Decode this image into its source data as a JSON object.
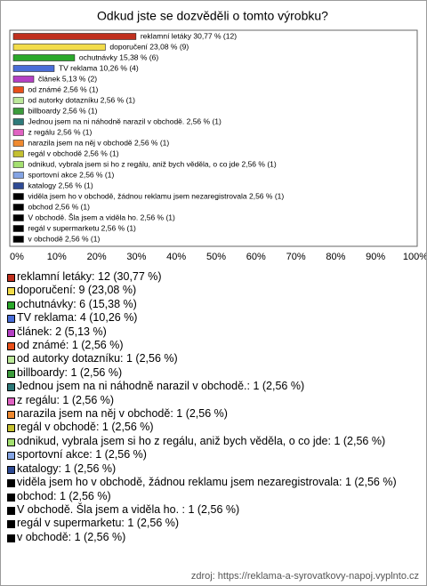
{
  "chart_data": {
    "type": "barh",
    "title": "Odkud jste se dozvěděli o tomto výrobku?",
    "categories": [
      "reklamní letáky",
      "doporučení",
      "ochutnávky",
      "TV reklama",
      "článek",
      "od známé",
      "od autorky dotazníku",
      "billboardy",
      "Jednou jsem na ni náhodně narazil v obchodě.",
      "z regálu",
      "narazila jsem na něj v obchodě",
      "regál v obchodě",
      "odnikud, vybrala jsem si ho z regálu, aniž bych věděla, o co jde",
      "sportovní akce",
      "katalogy",
      "viděla jsem ho v obchodě, žádnou reklamu jsem nezaregistrovala",
      "obchod",
      "V obchodě. Šla jsem a viděla ho.",
      "regál v supermarketu",
      "v obchodě"
    ],
    "values": [
      30.77,
      23.08,
      15.38,
      10.26,
      5.13,
      2.56,
      2.56,
      2.56,
      2.56,
      2.56,
      2.56,
      2.56,
      2.56,
      2.56,
      2.56,
      2.56,
      2.56,
      2.56,
      2.56,
      2.56
    ],
    "value_labels": [
      "reklamní letáky 30,77 % (12)",
      "doporučení 23,08 % (9)",
      "ochutnávky 15,38 % (6)",
      "TV reklama 10,26 % (4)",
      "článek 5,13 % (2)",
      "od známé 2,56 % (1)",
      "od autorky dotazníku 2,56 % (1)",
      "billboardy 2,56 % (1)",
      "Jednou jsem na ni náhodně narazil v obchodě. 2,56 % (1)",
      "z regálu 2,56 % (1)",
      "narazila jsem na něj v obchodě 2,56 % (1)",
      "regál v obchodě 2,56 % (1)",
      "odnikud, vybrala jsem si ho z regálu, aniž bych věděla, o co jde 2,56 % (1)",
      "sportovní akce 2,56 % (1)",
      "katalogy 2,56 % (1)",
      "viděla jsem ho v obchodě, žádnou reklamu jsem nezaregistrovala 2,56 % (1)",
      "obchod 2,56 % (1)",
      "V obchodě. Šla jsem a viděla ho.  2,56 % (1)",
      "regál v supermarketu 2,56 % (1)",
      "v obchodě 2,56 % (1)"
    ],
    "legend_labels": [
      "reklamní letáky: 12 (30,77 %)",
      "doporučení: 9 (23,08 %)",
      "ochutnávky: 6 (15,38 %)",
      "TV reklama: 4 (10,26 %)",
      "článek: 2 (5,13 %)",
      "od známé: 1 (2,56 %)",
      "od autorky dotazníku: 1 (2,56 %)",
      "billboardy: 1 (2,56 %)",
      "Jednou jsem na ni náhodně narazil v obchodě.: 1 (2,56 %)",
      "z regálu: 1 (2,56 %)",
      "narazila jsem na něj v obchodě: 1 (2,56 %)",
      "regál v obchodě: 1 (2,56 %)",
      "odnikud, vybrala jsem si ho z regálu, aniž bych věděla, o co jde: 1 (2,56 %)",
      "sportovní akce: 1 (2,56 %)",
      "katalogy: 1 (2,56 %)",
      "viděla jsem ho v obchodě, žádnou reklamu jsem nezaregistrovala: 1 (2,56 %)",
      "obchod: 1 (2,56 %)",
      "V obchodě. Šla jsem a viděla ho. : 1 (2,56 %)",
      "regál v supermarketu: 1 (2,56 %)",
      "v obchodě: 1 (2,56 %)"
    ],
    "colors": [
      "#c0301e",
      "#f2dc4a",
      "#2aa82a",
      "#4a6ed8",
      "#b440c4",
      "#e8501a",
      "#bce89a",
      "#3c9c3c",
      "#2e7a7a",
      "#e062c2",
      "#f08a30",
      "#c4c030",
      "#a4e070",
      "#84a4e4",
      "#2e4a94",
      "#000000",
      "#000000",
      "#000000",
      "#000000",
      "#000000"
    ],
    "xlim": [
      0,
      100
    ],
    "xticks": [
      {
        "value": 0,
        "label": "0%"
      },
      {
        "value": 10,
        "label": "10%"
      },
      {
        "value": 20,
        "label": "20%"
      },
      {
        "value": 30,
        "label": "30%"
      },
      {
        "value": 40,
        "label": "40%"
      },
      {
        "value": 50,
        "label": "50%"
      },
      {
        "value": 60,
        "label": "60%"
      },
      {
        "value": 70,
        "label": "70%"
      },
      {
        "value": 80,
        "label": "80%"
      },
      {
        "value": 90,
        "label": "90%"
      },
      {
        "value": 100,
        "label": "100%"
      }
    ],
    "grid": false,
    "source": "zdroj: https://reklama-a-syrovatkovy-napoj.vyplnto.cz"
  }
}
